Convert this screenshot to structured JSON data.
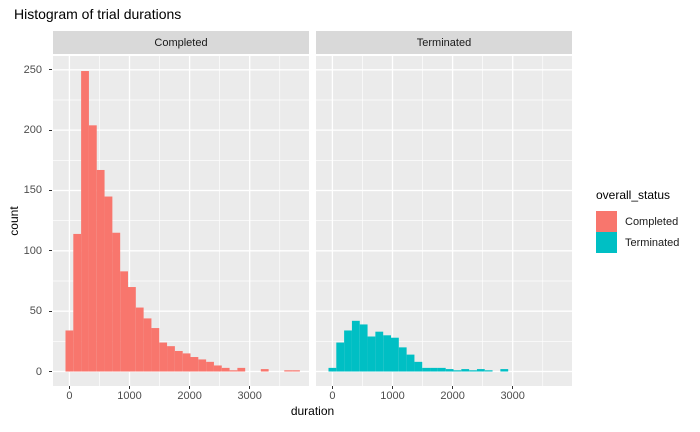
{
  "title": "Histogram of trial durations",
  "axes": {
    "x_label": "duration",
    "y_label": "count",
    "x_ticks": [
      0,
      1000,
      2000,
      3000
    ],
    "y_ticks": [
      0,
      50,
      100,
      150,
      200,
      250
    ]
  },
  "facets": [
    {
      "label": "Completed"
    },
    {
      "label": "Terminated"
    }
  ],
  "legend": {
    "title": "overall_status",
    "entries": [
      {
        "label": "Completed",
        "color": "#F8766D"
      },
      {
        "label": "Terminated",
        "color": "#00BFC4"
      }
    ]
  },
  "chart_data": {
    "type": "bar",
    "subtype": "faceted_histogram",
    "title": "Histogram of trial durations",
    "xlabel": "duration",
    "ylabel": "count",
    "facet_variable": "overall_status",
    "legend_position": "right",
    "grid": true,
    "bin_width": 130,
    "bin_centers": [
      0,
      130,
      260,
      390,
      520,
      650,
      780,
      910,
      1040,
      1170,
      1300,
      1430,
      1560,
      1690,
      1820,
      1950,
      2080,
      2210,
      2340,
      2470,
      2600,
      2730,
      2860,
      2990,
      3120,
      3250,
      3380,
      3510,
      3640,
      3770
    ],
    "series": [
      {
        "name": "Completed",
        "color": "#F8766D",
        "values": [
          34,
          114,
          249,
          204,
          167,
          145,
          115,
          83,
          70,
          53,
          44,
          36,
          24,
          21,
          17,
          15,
          12,
          10,
          8,
          5,
          3,
          1,
          3,
          0,
          0,
          2,
          0,
          0,
          1,
          1
        ]
      },
      {
        "name": "Terminated",
        "color": "#00BFC4",
        "values": [
          3,
          24,
          34,
          42,
          39,
          29,
          33,
          30,
          28,
          20,
          14,
          8,
          3,
          3,
          3,
          2,
          1,
          2,
          1,
          2,
          1,
          0,
          2,
          0,
          0,
          0,
          0,
          0,
          0,
          0
        ]
      }
    ],
    "xlim": [
      -270,
      3990
    ],
    "ylim": [
      0,
      261
    ],
    "x_ticks": [
      0,
      1000,
      2000,
      3000
    ],
    "y_ticks": [
      0,
      50,
      100,
      150,
      200,
      250
    ],
    "colors": {
      "panel_background": "#EBEBEB",
      "strip_background": "#D9D9D9",
      "gridline": "#FFFFFF",
      "tick_text": "#4D4D4D",
      "completed_fill": "#F8766D",
      "terminated_fill": "#00BFC4"
    }
  }
}
